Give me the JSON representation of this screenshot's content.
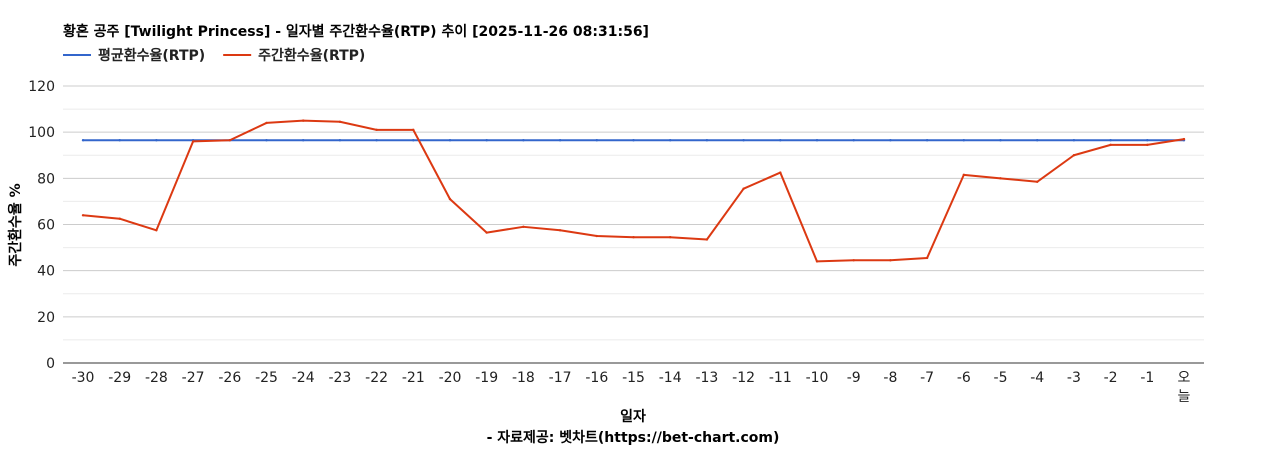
{
  "chart_data": {
    "type": "line",
    "title": "황혼 공주 [Twilight Princess] - 일자별 주간환수율(RTP) 추이 [2025-11-26 08:31:56]",
    "xlabel": "일자",
    "ylabel": "주간환수율 %",
    "source_note": "- 자료제공: 벳차트(https://bet-chart.com)",
    "ylim": [
      0,
      120
    ],
    "yticks": [
      "0",
      "20",
      "40",
      "60",
      "80",
      "100",
      "120"
    ],
    "grid": true,
    "legend_position": "top-left",
    "categories": [
      "-30",
      "-29",
      "-28",
      "-27",
      "-26",
      "-25",
      "-24",
      "-23",
      "-22",
      "-21",
      "-20",
      "-19",
      "-18",
      "-17",
      "-16",
      "-15",
      "-14",
      "-13",
      "-12",
      "-11",
      "-10",
      "-9",
      "-8",
      "-7",
      "-6",
      "-5",
      "-4",
      "-3",
      "-2",
      "-1",
      "오늘"
    ],
    "series": [
      {
        "name": "평균환수율(RTP)",
        "color": "#3366cc",
        "values": [
          96.5,
          96.5,
          96.5,
          96.5,
          96.5,
          96.5,
          96.5,
          96.5,
          96.5,
          96.5,
          96.5,
          96.5,
          96.5,
          96.5,
          96.5,
          96.5,
          96.5,
          96.5,
          96.5,
          96.5,
          96.5,
          96.5,
          96.5,
          96.5,
          96.5,
          96.5,
          96.5,
          96.5,
          96.5,
          96.5,
          96.5
        ]
      },
      {
        "name": "주간환수율(RTP)",
        "color": "#dc3912",
        "values": [
          64,
          62.5,
          57.5,
          96,
          96.5,
          104,
          105,
          104.5,
          101,
          101,
          71,
          56.5,
          59,
          57.5,
          55,
          54.5,
          54.5,
          53.5,
          75.5,
          82.5,
          44,
          44.5,
          44.5,
          45.5,
          81.5,
          80,
          78.5,
          90,
          94.5,
          94.5,
          97
        ]
      }
    ]
  }
}
